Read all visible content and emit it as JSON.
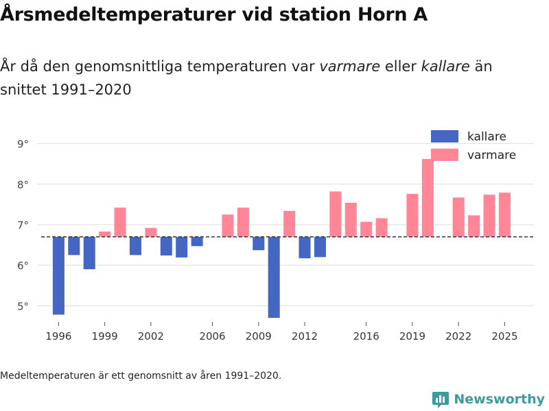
{
  "header": {
    "title": "Årsmedeltemperaturer vid station Horn A",
    "subtitle_prefix": "År då den genomsnittliga temperaturen var ",
    "subtitle_warm_word": "varmare",
    "subtitle_middle": " eller ",
    "subtitle_cold_word": "kallare",
    "subtitle_suffix": " än snittet 1991–2020"
  },
  "footer": {
    "note": "Medeltemperaturen är ett genomsnitt av åren 1991–2020.",
    "brand": "Newsworthy"
  },
  "colors": {
    "cold": "#4467c4",
    "warm": "#ff8696",
    "grid": "#dddddd",
    "baseline": "#333333",
    "brand": "#3d9ba0"
  },
  "chart_data": {
    "type": "bar",
    "baseline": 6.7,
    "ylim": [
      4.6,
      9.5
    ],
    "yticks": [
      5,
      6,
      7,
      8,
      9
    ],
    "ytick_labels": [
      "5°",
      "6°",
      "7°",
      "8°",
      "9°"
    ],
    "xlim": [
      1994.6,
      2026.9
    ],
    "xticks": [
      1996,
      1999,
      2002,
      2006,
      2009,
      2012,
      2016,
      2019,
      2022,
      2025
    ],
    "xtick_labels": [
      "1996",
      "1999",
      "2002",
      "2006",
      "2009",
      "2012",
      "2016",
      "2019",
      "2022",
      "2025"
    ],
    "legend": {
      "position": "top-right",
      "items": [
        {
          "key": "cold",
          "label": "kallare"
        },
        {
          "key": "warm",
          "label": "varmare"
        }
      ]
    },
    "years": [
      1996,
      1997,
      1998,
      1999,
      2000,
      2001,
      2002,
      2003,
      2004,
      2005,
      2007,
      2008,
      2009,
      2010,
      2011,
      2012,
      2013,
      2014,
      2015,
      2016,
      2017,
      2019,
      2020,
      2022,
      2023,
      2024,
      2025
    ],
    "values": [
      4.78,
      6.25,
      5.9,
      6.83,
      7.42,
      6.25,
      6.92,
      6.24,
      6.19,
      6.47,
      7.25,
      7.42,
      6.37,
      4.7,
      7.34,
      6.17,
      6.2,
      7.82,
      7.54,
      7.07,
      7.16,
      7.76,
      8.62,
      7.67,
      7.23,
      7.74,
      7.79
    ]
  }
}
